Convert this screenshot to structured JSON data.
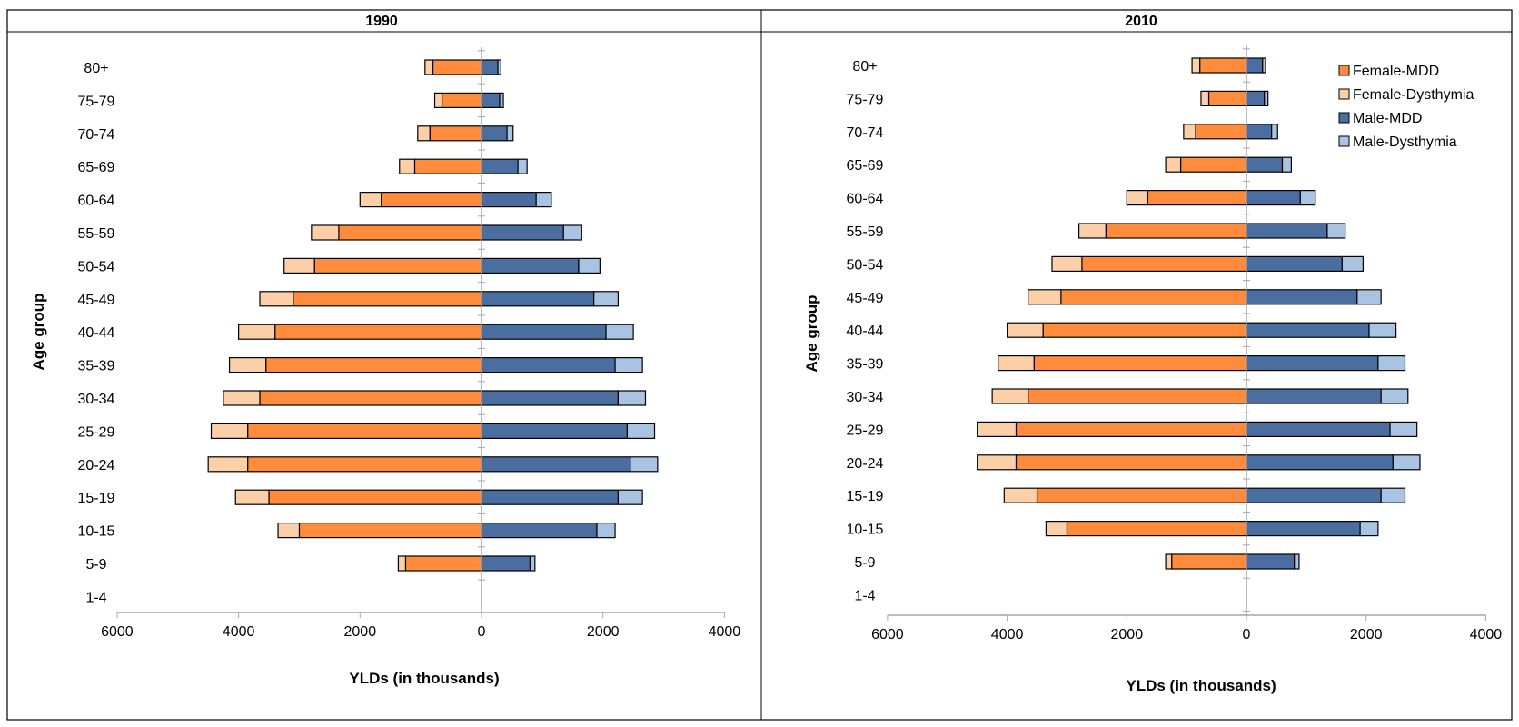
{
  "chart_data": [
    {
      "type": "bar",
      "orientation": "horizontal-diverging",
      "title": "1990",
      "xlabel": "YLDs (in thousands)",
      "ylabel": "Age group",
      "xlim": [
        -6000,
        4000
      ],
      "x_ticks": [
        "6000",
        "4000",
        "2000",
        "0",
        "2000",
        "4000"
      ],
      "grid": false,
      "legend": false,
      "categories": [
        "80+",
        "75-79",
        "70-74",
        "65-69",
        "60-64",
        "55-59",
        "50-54",
        "45-49",
        "40-44",
        "35-39",
        "30-34",
        "25-29",
        "20-24",
        "15-19",
        "10-15",
        "5-9",
        "1-4"
      ],
      "series": [
        {
          "name": "Female-MDD",
          "values": [
            800,
            650,
            850,
            1100,
            1650,
            2350,
            2750,
            3100,
            3400,
            3550,
            3650,
            3850,
            3850,
            3500,
            3000,
            1250,
            0
          ]
        },
        {
          "name": "Female-Dysthymia",
          "values": [
            130,
            120,
            200,
            250,
            350,
            450,
            500,
            550,
            600,
            600,
            600,
            600,
            650,
            550,
            350,
            120,
            0
          ]
        },
        {
          "name": "Male-MDD",
          "values": [
            270,
            300,
            420,
            600,
            900,
            1350,
            1600,
            1850,
            2050,
            2200,
            2250,
            2400,
            2450,
            2250,
            1900,
            800,
            0
          ]
        },
        {
          "name": "Male-Dysthymia",
          "values": [
            50,
            60,
            100,
            150,
            250,
            300,
            350,
            400,
            450,
            450,
            450,
            450,
            450,
            400,
            300,
            80,
            0
          ]
        }
      ]
    },
    {
      "type": "bar",
      "orientation": "horizontal-diverging",
      "title": "2010",
      "xlabel": "YLDs (in thousands)",
      "ylabel": "Age group",
      "xlim": [
        -6000,
        4000
      ],
      "x_ticks": [
        "6000",
        "4000",
        "2000",
        "0",
        "2000",
        "4000"
      ],
      "grid": false,
      "legend": true,
      "legend_position": "top-right",
      "categories": [
        "80+",
        "75-79",
        "70-74",
        "65-69",
        "60-64",
        "55-59",
        "50-54",
        "45-49",
        "40-44",
        "35-39",
        "30-34",
        "25-29",
        "20-24",
        "15-19",
        "10-15",
        "5-9",
        "1-4"
      ],
      "series": [
        {
          "name": "Female-MDD",
          "values": [
            780,
            630,
            850,
            1100,
            1650,
            2350,
            2750,
            3100,
            3400,
            3550,
            3650,
            3850,
            3850,
            3500,
            3000,
            1250,
            0
          ]
        },
        {
          "name": "Female-Dysthymia",
          "values": [
            130,
            130,
            200,
            250,
            350,
            450,
            500,
            550,
            600,
            600,
            600,
            650,
            650,
            550,
            350,
            100,
            0
          ]
        },
        {
          "name": "Male-MDD",
          "values": [
            270,
            300,
            420,
            600,
            900,
            1350,
            1600,
            1850,
            2050,
            2200,
            2250,
            2400,
            2450,
            2250,
            1900,
            800,
            0
          ]
        },
        {
          "name": "Male-Dysthymia",
          "values": [
            50,
            60,
            100,
            150,
            250,
            300,
            350,
            400,
            450,
            450,
            450,
            450,
            450,
            400,
            300,
            80,
            0
          ]
        }
      ]
    }
  ],
  "colors": {
    "female_mdd": "#ff8c3c",
    "female_dysthymia": "#fbcfa7",
    "male_mdd": "#4a6ea0",
    "male_dysthymia": "#a9c3e2",
    "bar_border": "#000000",
    "axis": "#a6a6a6",
    "frame": "#000000"
  }
}
